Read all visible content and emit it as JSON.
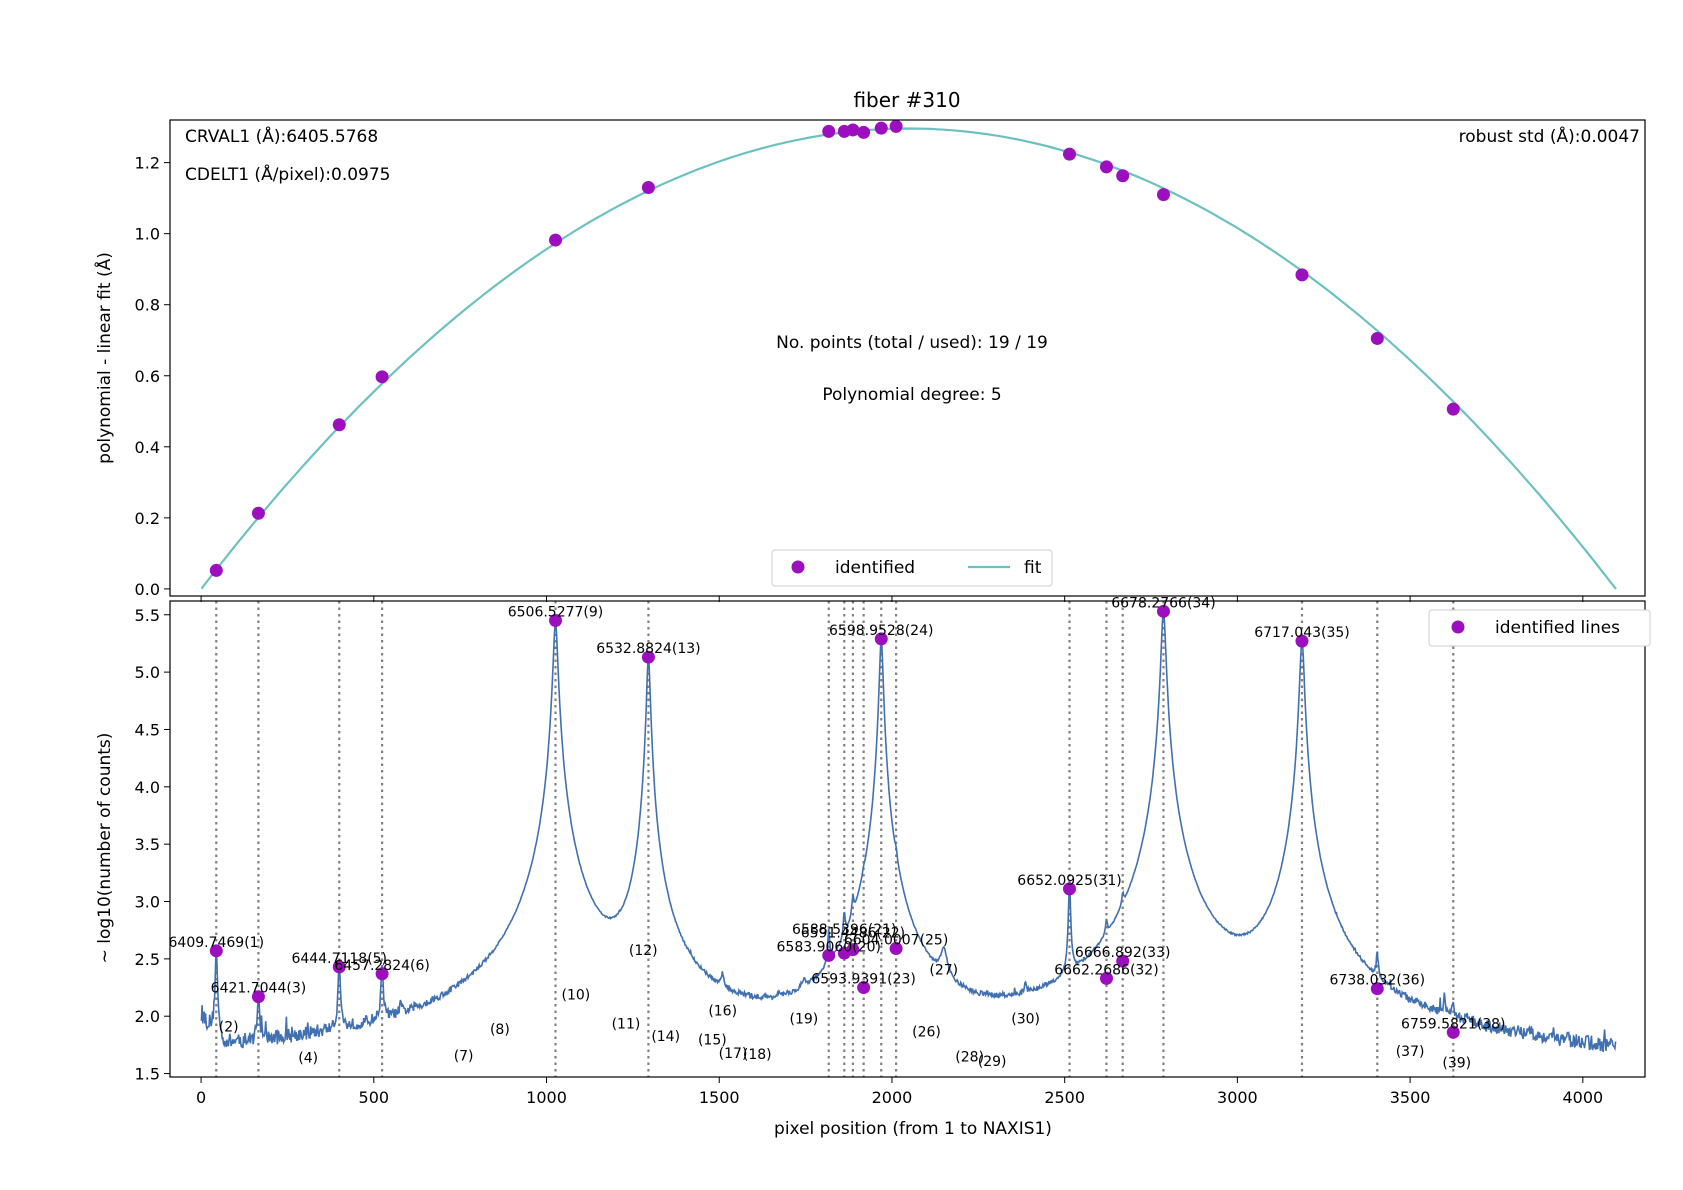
{
  "title": "fiber #310",
  "colors": {
    "points": "#9c0fbf",
    "fit_line": "#6cc1c0",
    "spectrum": "#4170b0",
    "vlines": "#808080",
    "frame": "#000000"
  },
  "chart_data": [
    {
      "type": "scatter",
      "panel": "top",
      "ylabel": "polynomial - linear fit (Å)",
      "xlim": [
        -90,
        4180
      ],
      "ylim": [
        -0.02,
        1.32
      ],
      "yticks": [
        0.0,
        0.2,
        0.4,
        0.6,
        0.8,
        1.0,
        1.2
      ],
      "ytick_labels": [
        "0.0",
        "0.2",
        "0.4",
        "0.6",
        "0.8",
        "1.0",
        "1.2"
      ],
      "text_top_left": [
        "CRVAL1 (Å):6405.5768",
        "CDELT1 (Å/pixel):0.0975"
      ],
      "text_top_right": "robust std (Å):0.0047",
      "text_center": [
        "No. points (total / used): 19 / 19",
        "Polynomial degree: 5"
      ],
      "legend": {
        "location": "lower center",
        "entries": [
          "identified",
          "fit"
        ]
      },
      "series": [
        {
          "name": "identified",
          "style": "markers",
          "x": [
            44,
            166,
            400,
            524,
            1026,
            1295,
            1817,
            1862,
            1887,
            1918,
            1969,
            2012,
            2514,
            2621,
            2668,
            2786,
            3187,
            3405,
            3625
          ],
          "y": [
            0.052,
            0.213,
            0.462,
            0.597,
            0.982,
            1.13,
            1.288,
            1.288,
            1.292,
            1.285,
            1.297,
            1.302,
            1.224,
            1.188,
            1.163,
            1.11,
            0.884,
            0.705,
            0.506
          ]
        },
        {
          "name": "fit",
          "style": "line",
          "model": "quadratic",
          "x_range": [
            1,
            4096
          ],
          "y_at_ends": 0.0,
          "y_peak": 1.296,
          "x_peak": 2048
        }
      ]
    },
    {
      "type": "line",
      "panel": "bottom",
      "xlabel": "pixel position (from 1 to NAXIS1)",
      "ylabel": "~ log10(number of counts)",
      "xlim": [
        -90,
        4180
      ],
      "ylim": [
        1.47,
        5.62
      ],
      "xticks": [
        0,
        500,
        1000,
        1500,
        2000,
        2500,
        3000,
        3500,
        4000
      ],
      "xtick_labels": [
        "0",
        "500",
        "1000",
        "1500",
        "2000",
        "2500",
        "3000",
        "3500",
        "4000"
      ],
      "yticks": [
        1.5,
        2.0,
        2.5,
        3.0,
        3.5,
        4.0,
        4.5,
        5.0,
        5.5
      ],
      "ytick_labels": [
        "1.5",
        "2.0",
        "2.5",
        "3.0",
        "3.5",
        "4.0",
        "4.5",
        "5.0",
        "5.5"
      ],
      "legend": {
        "location": "upper right",
        "entries": [
          "identified lines"
        ]
      },
      "spectrum": {
        "baseline": 1.6,
        "lines": [
          {
            "x": 44,
            "peak": 2.56,
            "width": 3
          },
          {
            "x": 166,
            "peak": 2.16,
            "width": 3
          },
          {
            "x": 400,
            "peak": 2.42,
            "width": 3
          },
          {
            "x": 524,
            "peak": 2.37,
            "width": 3
          },
          {
            "x": 578,
            "peak": 1.8,
            "width": 3
          },
          {
            "x": 1026,
            "peak": 5.44,
            "width": 6
          },
          {
            "x": 1295,
            "peak": 5.12,
            "width": 5
          },
          {
            "x": 1280,
            "peak": 2.48,
            "width": 4
          },
          {
            "x": 1510,
            "peak": 1.98,
            "width": 4
          },
          {
            "x": 1745,
            "peak": 1.87,
            "width": 4
          },
          {
            "x": 1817,
            "peak": 2.52,
            "width": 3
          },
          {
            "x": 1862,
            "peak": 2.55,
            "width": 3
          },
          {
            "x": 1887,
            "peak": 2.58,
            "width": 3
          },
          {
            "x": 1918,
            "peak": 2.25,
            "width": 3
          },
          {
            "x": 1969,
            "peak": 5.29,
            "width": 5
          },
          {
            "x": 2012,
            "peak": 2.59,
            "width": 3
          },
          {
            "x": 2150,
            "peak": 2.32,
            "width": 10
          },
          {
            "x": 2387,
            "peak": 1.9,
            "width": 3
          },
          {
            "x": 2514,
            "peak": 3.1,
            "width": 3
          },
          {
            "x": 2621,
            "peak": 2.33,
            "width": 3
          },
          {
            "x": 2668,
            "peak": 2.48,
            "width": 3
          },
          {
            "x": 2786,
            "peak": 5.53,
            "width": 6
          },
          {
            "x": 3187,
            "peak": 5.27,
            "width": 6
          },
          {
            "x": 3405,
            "peak": 2.24,
            "width": 3
          },
          {
            "x": 3600,
            "peak": 1.95,
            "width": 3
          },
          {
            "x": 3625,
            "peak": 1.86,
            "width": 3
          },
          {
            "x": 3850,
            "peak": 1.7,
            "width": 4
          }
        ]
      },
      "identified_lines": {
        "name": "identified lines",
        "x": [
          44,
          166,
          400,
          524,
          1026,
          1295,
          1817,
          1862,
          1887,
          1918,
          1969,
          2012,
          2514,
          2621,
          2668,
          2786,
          3187,
          3405,
          3625
        ],
        "y": [
          2.57,
          2.17,
          2.43,
          2.37,
          5.45,
          5.13,
          2.53,
          2.55,
          2.58,
          2.25,
          5.29,
          2.59,
          3.11,
          2.33,
          2.48,
          5.53,
          5.27,
          2.24,
          1.86
        ]
      },
      "annotations": [
        {
          "text": "6409.7469(1)",
          "x": 44,
          "y": 2.57
        },
        {
          "text": "(2)",
          "x": 80,
          "y": 1.83
        },
        {
          "text": "6421.7044(3)",
          "x": 166,
          "y": 2.17
        },
        {
          "text": "(4)",
          "x": 310,
          "y": 1.56
        },
        {
          "text": "6444.7118(5)",
          "x": 400,
          "y": 2.43
        },
        {
          "text": "6457.2824(6)",
          "x": 524,
          "y": 2.37
        },
        {
          "text": "(7)",
          "x": 760,
          "y": 1.58
        },
        {
          "text": "(8)",
          "x": 865,
          "y": 1.81
        },
        {
          "text": "6506.5277(9)",
          "x": 1026,
          "y": 5.45
        },
        {
          "text": "(10)",
          "x": 1085,
          "y": 2.11
        },
        {
          "text": "(11)",
          "x": 1230,
          "y": 1.86
        },
        {
          "text": "(12)",
          "x": 1280,
          "y": 2.5
        },
        {
          "text": "6532.8824(13)",
          "x": 1295,
          "y": 5.13
        },
        {
          "text": "(14)",
          "x": 1345,
          "y": 1.75
        },
        {
          "text": "(15)",
          "x": 1480,
          "y": 1.72
        },
        {
          "text": "(16)",
          "x": 1510,
          "y": 1.97
        },
        {
          "text": "(17)",
          "x": 1540,
          "y": 1.6
        },
        {
          "text": "(18)",
          "x": 1610,
          "y": 1.59
        },
        {
          "text": "(19)",
          "x": 1745,
          "y": 1.9
        },
        {
          "text": "6583.9060(20)",
          "x": 1817,
          "y": 2.53
        },
        {
          "text": "6588.5396(21)",
          "x": 1862,
          "y": 2.68
        },
        {
          "text": "6591.4486(22)",
          "x": 1887,
          "y": 2.65
        },
        {
          "text": "6593.9391(23)",
          "x": 1918,
          "y": 2.25
        },
        {
          "text": "6598.9528(24)",
          "x": 1969,
          "y": 5.29
        },
        {
          "text": "6604.0007(25)",
          "x": 2012,
          "y": 2.59
        },
        {
          "text": "(26)",
          "x": 2100,
          "y": 1.79
        },
        {
          "text": "(27)",
          "x": 2150,
          "y": 2.33
        },
        {
          "text": "(28)",
          "x": 2225,
          "y": 1.57
        },
        {
          "text": "(29)",
          "x": 2290,
          "y": 1.53
        },
        {
          "text": "(30)",
          "x": 2387,
          "y": 1.9
        },
        {
          "text": "6652.0925(31)",
          "x": 2514,
          "y": 3.11
        },
        {
          "text": "6662.2686(32)",
          "x": 2621,
          "y": 2.33
        },
        {
          "text": "6666.892(33)",
          "x": 2668,
          "y": 2.48
        },
        {
          "text": "6678.2766(34)",
          "x": 2786,
          "y": 5.53
        },
        {
          "text": "6717.043(35)",
          "x": 3187,
          "y": 5.27
        },
        {
          "text": "6738.032(36)",
          "x": 3405,
          "y": 2.24
        },
        {
          "text": "(37)",
          "x": 3500,
          "y": 1.62
        },
        {
          "text": "6759.5821(38)",
          "x": 3625,
          "y": 1.86
        },
        {
          "text": "(39)",
          "x": 3635,
          "y": 1.52
        }
      ]
    }
  ]
}
